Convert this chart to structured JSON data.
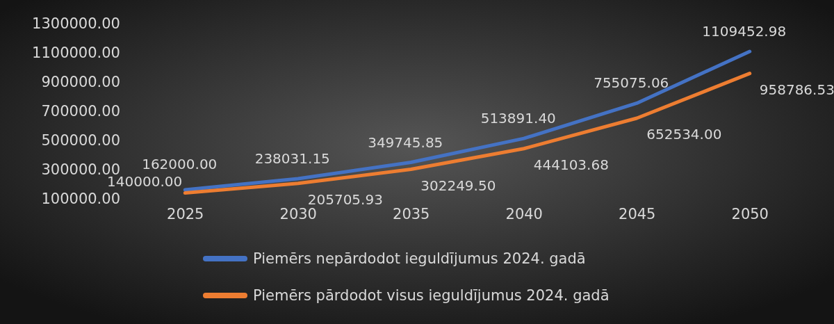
{
  "chart_data": {
    "type": "line",
    "categories": [
      "2025",
      "2030",
      "2035",
      "2040",
      "2045",
      "2050"
    ],
    "ylim": [
      100000,
      1300000
    ],
    "yticks": [
      {
        "value": 100000,
        "label": "100000.00"
      },
      {
        "value": 300000,
        "label": "300000.00"
      },
      {
        "value": 500000,
        "label": "500000.00"
      },
      {
        "value": 700000,
        "label": "700000.00"
      },
      {
        "value": 900000,
        "label": "900000.00"
      },
      {
        "value": 1100000,
        "label": "1100000.00"
      },
      {
        "value": 1300000,
        "label": "1300000.00"
      }
    ],
    "series": [
      {
        "name": "Piemērs nepārdodot ieguldījumus 2024. gadā",
        "color": "#4472c4",
        "values": [
          162000,
          238031.15,
          349745.85,
          513891.4,
          755075.06,
          1109452.98
        ],
        "value_labels": [
          "162000.00",
          "238031.15",
          "349745.85",
          "513891.40",
          "755075.06",
          "1109452.98"
        ]
      },
      {
        "name": "Piemērs pārdodot visus ieguldījumus 2024. gadā",
        "color": "#ed7d31",
        "values": [
          140000,
          205705.93,
          302249.5,
          444103.68,
          652534.0,
          958786.53
        ],
        "value_labels": [
          "140000.00",
          "205705.93",
          "302249.50",
          "444103.68",
          "652534.00",
          "958786.53"
        ]
      }
    ],
    "legend": "bottom",
    "grid": false,
    "marker": "none",
    "line_style": "solid"
  }
}
